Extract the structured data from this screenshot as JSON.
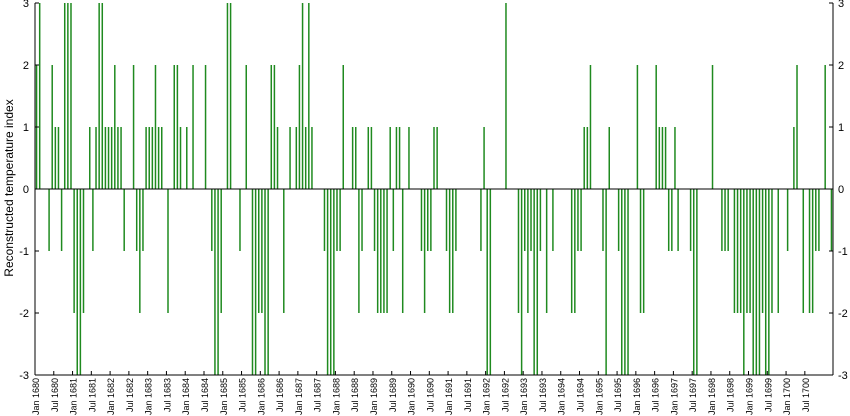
{
  "chart_data": {
    "type": "bar",
    "ylabel": "Reconstructed temperature index",
    "xlabel": "",
    "ylim": [
      -3,
      3
    ],
    "yticks": [
      3,
      2,
      1,
      0,
      -1,
      -2,
      -3
    ],
    "ytick_labels": [
      "3",
      "2",
      "1",
      "0",
      "-1",
      "-2",
      "-3"
    ],
    "xlim": [
      "Jan 1680",
      "Dec 1700"
    ],
    "xtick_labels": [
      "Jan 1680",
      "Jul 1680",
      "Jan 1681",
      "Jul 1681",
      "Jan 1682",
      "Jul 1682",
      "Jan 1683",
      "Jul 1683",
      "Jan 1684",
      "Jul 1684",
      "Jan 1685",
      "Jul 1685",
      "Jan 1686",
      "Jul 1686",
      "Jan 1687",
      "Jul 1687",
      "Jan 1688",
      "Jul 1688",
      "Jan 1689",
      "Jul 1689",
      "Jan 1690",
      "Jul 1690",
      "Jan 1691",
      "Jul 1691",
      "Jan 1692",
      "Jul 1692",
      "Jan 1693",
      "Jul 1693",
      "Jan 1694",
      "Jul 1694",
      "Jan 1695",
      "Jul 1695",
      "Jan 1696",
      "Jul 1696",
      "Jan 1697",
      "Jul 1697",
      "Jan 1698",
      "Jul 1698",
      "Jan 1699",
      "Jul 1699",
      "Jan 1700",
      "Jul 1700"
    ],
    "bar_color": "#1f8a1f",
    "axis_color": "#000000",
    "grid": false,
    "right_axis_mirrored": true,
    "series": [
      {
        "values": [
          2,
          3,
          0,
          0,
          -1,
          2,
          1,
          1,
          -1,
          3,
          3,
          3,
          -2,
          -3,
          -3,
          -2,
          0,
          1,
          -1,
          1,
          3,
          3,
          1,
          1,
          1,
          2,
          1,
          1,
          -1,
          0,
          0,
          2,
          -1,
          -2,
          -1,
          1,
          1,
          1,
          2,
          1,
          1,
          0,
          -2,
          0,
          2,
          2,
          1,
          0,
          1,
          0,
          2,
          0,
          0,
          0,
          2,
          0,
          -1,
          -3,
          -3,
          -2,
          0,
          3,
          3,
          0,
          0,
          -1,
          0,
          2,
          0,
          -3,
          -3,
          -2,
          -2,
          -3,
          -3,
          2,
          2,
          1,
          0,
          -2,
          0,
          1,
          0,
          1,
          2,
          3,
          1,
          3,
          1,
          0,
          0,
          0,
          -1,
          -3,
          -3,
          -3,
          -1,
          -1,
          2,
          0,
          0,
          1,
          1,
          -2,
          -1,
          0,
          1,
          1,
          -1,
          -2,
          -2,
          -2,
          -2,
          1,
          -1,
          1,
          1,
          -2,
          0,
          1,
          0,
          0,
          0,
          -1,
          -2,
          -1,
          -1,
          1,
          1,
          0,
          0,
          -1,
          -2,
          -2,
          -1,
          0,
          0,
          0,
          0,
          0,
          0,
          0,
          -1,
          1,
          -3,
          -3,
          0,
          0,
          0,
          0,
          3,
          0,
          0,
          0,
          -2,
          -3,
          -1,
          -2,
          -1,
          -3,
          -3,
          -1,
          0,
          -2,
          0,
          -1,
          0,
          0,
          0,
          0,
          0,
          -2,
          -2,
          -1,
          -1,
          1,
          1,
          2,
          0,
          0,
          0,
          -1,
          -3,
          1,
          0,
          0,
          -1,
          -3,
          -3,
          -3,
          0,
          0,
          2,
          -2,
          -2,
          0,
          0,
          0,
          2,
          1,
          1,
          1,
          -1,
          -1,
          1,
          -1,
          0,
          0,
          0,
          -1,
          -3,
          -3,
          0,
          0,
          0,
          0,
          2,
          0,
          0,
          -1,
          -1,
          -1,
          0,
          -2,
          -2,
          -2,
          -3,
          -2,
          -2,
          -3,
          -3,
          -3,
          -2,
          -3,
          -3,
          -2,
          0,
          -2,
          0,
          0,
          -1,
          0,
          1,
          2,
          0,
          -2,
          0,
          -2,
          -2,
          -1,
          -1,
          0,
          2,
          0,
          -1
        ]
      }
    ]
  }
}
